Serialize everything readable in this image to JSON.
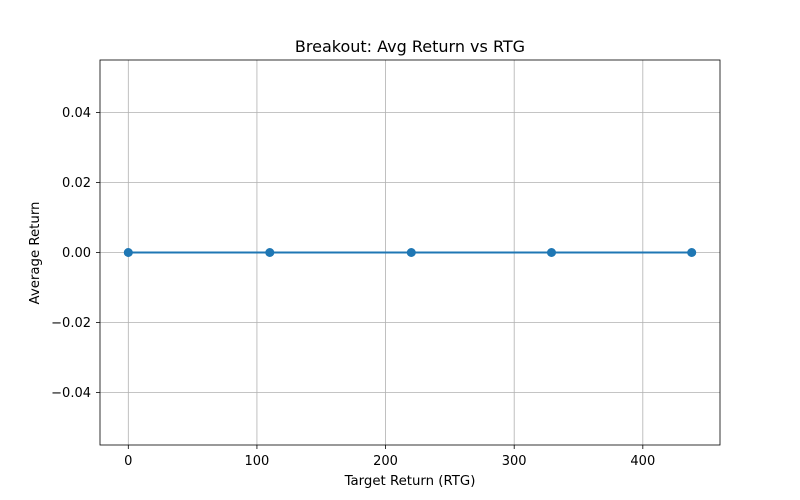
{
  "chart_data": {
    "type": "line",
    "title": "Breakout: Avg Return vs RTG",
    "xlabel": "Target Return (RTG)",
    "ylabel": "Average Return",
    "xlim": [
      -22,
      460
    ],
    "ylim": [
      -0.055,
      0.055
    ],
    "xticks": [
      0,
      100,
      200,
      300,
      400
    ],
    "xtick_labels": [
      "0",
      "100",
      "200",
      "300",
      "400"
    ],
    "yticks": [
      0.04,
      0.02,
      0.0,
      -0.02,
      -0.04
    ],
    "ytick_labels": [
      "0.04",
      "0.02",
      "0.00",
      "−0.02",
      "−0.04"
    ],
    "grid": true,
    "series": [
      {
        "name": "avg_return",
        "color": "#1f77b4",
        "marker": "circle",
        "x": [
          0,
          110,
          220,
          329,
          438
        ],
        "y": [
          0,
          0,
          0,
          0,
          0
        ]
      }
    ]
  }
}
